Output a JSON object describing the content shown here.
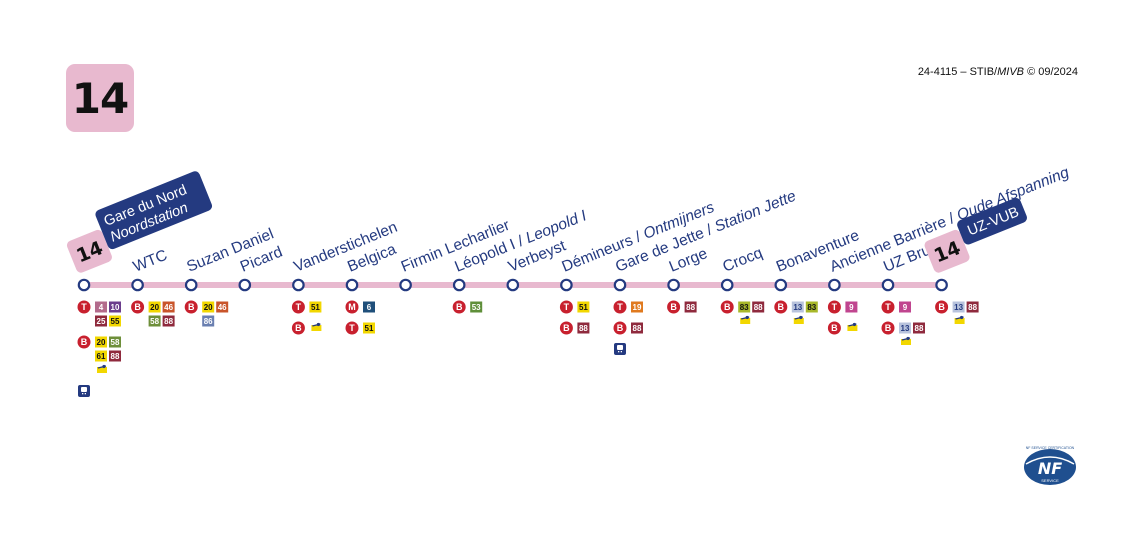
{
  "line": {
    "number": "14",
    "color": "#e8b9cf"
  },
  "copyright": {
    "code": "24-4115 – STIB/",
    "italic": "MIVB",
    "rest": " © 09/2024"
  },
  "terminus_start": {
    "badge": "14",
    "fr": "Gare du Nord",
    "nl": "Noordstation"
  },
  "terminus_end": {
    "badge": "14",
    "name": "UZ-VUB"
  },
  "stops": [
    {
      "fr": "Gare du Nord",
      "nl": "Noordstation",
      "terminus": true,
      "connections": [
        {
          "mode": "T",
          "routes": [
            "4",
            "10",
            "25",
            "55"
          ]
        },
        {
          "mode": "B",
          "routes": [
            "20",
            "58",
            "61",
            "88"
          ],
          "extra": "noctis"
        },
        {
          "mode": "train"
        }
      ]
    },
    {
      "fr": "WTC",
      "connections": [
        {
          "mode": "B",
          "routes": [
            "20",
            "46",
            "58",
            "88"
          ]
        }
      ]
    },
    {
      "fr": "Suzan Daniel",
      "connections": [
        {
          "mode": "B",
          "routes": [
            "20",
            "46",
            "86"
          ]
        }
      ]
    },
    {
      "fr": "Picard",
      "connections": []
    },
    {
      "fr": "Vanderstichelen",
      "connections": [
        {
          "mode": "T",
          "routes": [
            "51"
          ]
        },
        {
          "mode": "B",
          "routes": [],
          "extra": "noctis"
        }
      ]
    },
    {
      "fr": "Belgica",
      "connections": [
        {
          "mode": "M",
          "routes": [
            "6"
          ]
        },
        {
          "mode": "T",
          "routes": [
            "51"
          ]
        }
      ]
    },
    {
      "fr": "Firmin Lecharlier",
      "connections": []
    },
    {
      "fr": "Léopold I",
      "nl": "Leopold I",
      "connections": [
        {
          "mode": "B",
          "routes": [
            "53"
          ]
        }
      ]
    },
    {
      "fr": "Verbeyst",
      "connections": []
    },
    {
      "fr": "Démineurs",
      "nl": "Ontmijners",
      "connections": [
        {
          "mode": "T",
          "routes": [
            "51"
          ]
        },
        {
          "mode": "B",
          "routes": [
            "88"
          ]
        }
      ]
    },
    {
      "fr": "Gare de Jette",
      "nl": "Station Jette",
      "connections": [
        {
          "mode": "T",
          "routes": [
            "19"
          ]
        },
        {
          "mode": "B",
          "routes": [
            "88"
          ]
        },
        {
          "mode": "train"
        }
      ]
    },
    {
      "fr": "Lorge",
      "connections": [
        {
          "mode": "B",
          "routes": [
            "88"
          ]
        }
      ]
    },
    {
      "fr": "Crocq",
      "connections": [
        {
          "mode": "B",
          "routes": [
            "83",
            "88"
          ],
          "extra": "noctis"
        }
      ]
    },
    {
      "fr": "Bonaventure",
      "connections": [
        {
          "mode": "B",
          "routes": [
            "13",
            "83"
          ],
          "extra": "noctis"
        }
      ]
    },
    {
      "fr": "Ancienne Barrière",
      "nl": "Oude Afspanning",
      "connections": [
        {
          "mode": "T",
          "routes": [
            "9"
          ]
        },
        {
          "mode": "B",
          "routes": [],
          "extra": "noctis"
        }
      ]
    },
    {
      "fr": "UZ Brussel",
      "connections": [
        {
          "mode": "T",
          "routes": [
            "9"
          ]
        },
        {
          "mode": "B",
          "routes": [
            "13",
            "88"
          ],
          "extra": "noctis"
        }
      ]
    },
    {
      "fr": "UZ-VUB",
      "terminus": true,
      "connections": [
        {
          "mode": "B",
          "routes": [
            "13",
            "88"
          ],
          "extra": "noctis"
        }
      ]
    }
  ],
  "route_colors": {
    "4": {
      "bg": "#b36b8c",
      "fg": "#ffffff"
    },
    "10": {
      "bg": "#6b3d8c",
      "fg": "#ffffff"
    },
    "25": {
      "bg": "#8f2a3d",
      "fg": "#ffffff"
    },
    "55": {
      "bg": "#f2d700",
      "fg": "#111111"
    },
    "20": {
      "bg": "#f2d700",
      "fg": "#111111"
    },
    "58": {
      "bg": "#6e8f3a",
      "fg": "#ffffff"
    },
    "61": {
      "bg": "#f2d700",
      "fg": "#111111"
    },
    "88": {
      "bg": "#8f2a3d",
      "fg": "#ffffff"
    },
    "46": {
      "bg": "#c9552b",
      "fg": "#ffffff"
    },
    "86": {
      "bg": "#6a7fb0",
      "fg": "#ffffff"
    },
    "51": {
      "bg": "#f2d700",
      "fg": "#111111"
    },
    "6": {
      "bg": "#1f4f7a",
      "fg": "#ffffff"
    },
    "53": {
      "bg": "#5f8f3a",
      "fg": "#ffffff"
    },
    "19": {
      "bg": "#e07a1f",
      "fg": "#ffffff"
    },
    "83": {
      "bg": "#a8b82a",
      "fg": "#111111"
    },
    "13": {
      "bg": "#b8c3dc",
      "fg": "#243a80"
    },
    "9": {
      "bg": "#c0458f",
      "fg": "#ffffff"
    }
  },
  "mode_colors": {
    "T": "#c8202e",
    "B": "#c8202e",
    "M": "#c8202e"
  },
  "colors": {
    "line": "#e8b9cf",
    "stop_stroke": "#243a80",
    "text": "#243a80",
    "terminus_box": "#243a80"
  },
  "nf_logo": {
    "top": "NF SERVICE CERTIFICATION",
    "mark": "NF",
    "bottom": "SERVICE"
  }
}
